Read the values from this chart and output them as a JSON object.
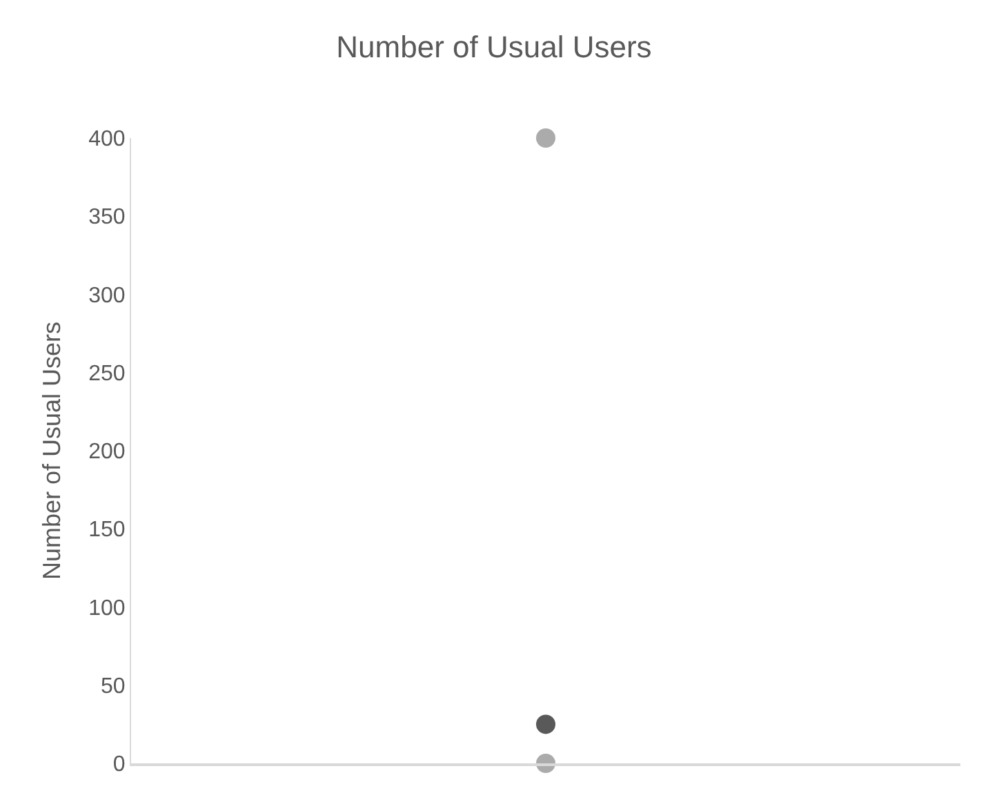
{
  "chart_data": {
    "type": "scatter",
    "title": "Number of Usual Users",
    "ylabel": "Number of Usual Users",
    "categories": [
      null
    ],
    "series": [
      {
        "color": "#ababab",
        "values": [
          400
        ]
      },
      {
        "color": "#595959",
        "values": [
          25
        ]
      },
      {
        "color": "#ababab",
        "values": [
          0
        ]
      }
    ],
    "ylim": [
      0,
      400
    ],
    "yticks": [
      0,
      50,
      100,
      150,
      200,
      250,
      300,
      350,
      400
    ],
    "grid": false,
    "marker": "circle",
    "tick_labels": "y"
  }
}
